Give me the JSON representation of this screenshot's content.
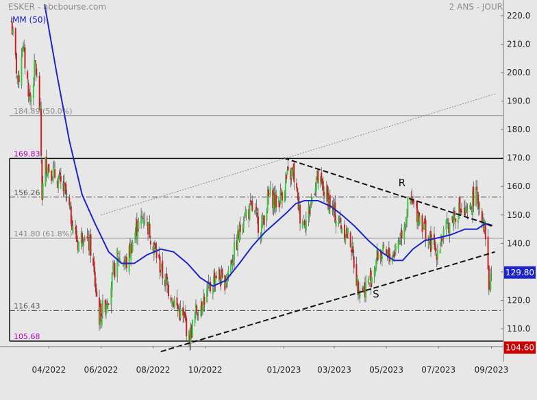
{
  "header": {
    "ticker": "ESKER - abcbourse.com",
    "period": "2 ANS - JOUR",
    "mm_label": "MM (50)"
  },
  "colors": {
    "background": "#e7e7e7",
    "up": "#3cc83c",
    "down": "#cc2222",
    "ma": "#1a24c8",
    "fib": "#8c8c8c",
    "extreme": "#b400b4",
    "last_price_bg": "#1a24c8",
    "low_price_bg": "#c80000"
  },
  "chart_data": {
    "type": "candlestick",
    "ylim": [
      104.0,
      225.5
    ],
    "y_ticks": [
      110,
      120,
      130,
      140,
      150,
      160,
      170,
      180,
      190,
      200,
      210,
      220
    ],
    "y_tick_labels": [
      "110.0",
      "120.0",
      "130.0",
      "140.0",
      "150.0",
      "160.0",
      "170.0",
      "180.0",
      "190.0",
      "200.0",
      "210.0",
      "220.0"
    ],
    "x_range": [
      "2022-02-14",
      "2023-09-15"
    ],
    "x_ticks": [
      "2022-04-01",
      "2022-06-01",
      "2022-08-01",
      "2022-10-01",
      "2023-01-01",
      "2023-03-01",
      "2023-05-01",
      "2023-07-01",
      "2023-09-01"
    ],
    "x_tick_labels": [
      "04/2022",
      "06/2022",
      "08/2022",
      "10/2022",
      "01/2023",
      "03/2023",
      "05/2023",
      "07/2023",
      "09/2023"
    ],
    "price_path": [
      [
        "2022-02-16",
        218
      ],
      [
        "2022-02-24",
        196
      ],
      [
        "2022-03-01",
        210
      ],
      [
        "2022-03-10",
        190
      ],
      [
        "2022-03-16",
        203
      ],
      [
        "2022-03-22",
        185
      ],
      [
        "2022-03-24",
        157
      ],
      [
        "2022-03-28",
        168
      ],
      [
        "2022-04-08",
        164
      ],
      [
        "2022-04-20",
        158
      ],
      [
        "2022-04-28",
        148
      ],
      [
        "2022-05-05",
        140
      ],
      [
        "2022-05-12",
        144
      ],
      [
        "2022-05-20",
        138
      ],
      [
        "2022-05-30",
        114
      ],
      [
        "2022-06-10",
        122
      ],
      [
        "2022-06-20",
        135
      ],
      [
        "2022-07-01",
        133
      ],
      [
        "2022-07-12",
        145
      ],
      [
        "2022-07-22",
        150
      ],
      [
        "2022-08-01",
        140
      ],
      [
        "2022-08-12",
        129
      ],
      [
        "2022-08-28",
        118
      ],
      [
        "2022-09-08",
        112
      ],
      [
        "2022-09-12",
        106
      ],
      [
        "2022-09-20",
        116
      ],
      [
        "2022-10-05",
        123
      ],
      [
        "2022-10-15",
        130
      ],
      [
        "2022-10-22",
        125
      ],
      [
        "2022-11-05",
        138
      ],
      [
        "2022-11-15",
        150
      ],
      [
        "2022-11-25",
        152
      ],
      [
        "2022-12-05",
        145
      ],
      [
        "2022-12-15",
        157
      ],
      [
        "2022-12-25",
        154
      ],
      [
        "2023-01-05",
        163
      ],
      [
        "2023-01-12",
        165
      ],
      [
        "2023-01-20",
        150
      ],
      [
        "2023-01-28",
        148
      ],
      [
        "2023-02-08",
        163
      ],
      [
        "2023-02-18",
        158
      ],
      [
        "2023-02-28",
        151
      ],
      [
        "2023-03-10",
        146
      ],
      [
        "2023-03-20",
        141
      ],
      [
        "2023-03-28",
        126
      ],
      [
        "2023-04-05",
        124
      ],
      [
        "2023-04-12",
        127
      ],
      [
        "2023-04-22",
        137
      ],
      [
        "2023-05-02",
        135
      ],
      [
        "2023-05-10",
        137
      ],
      [
        "2023-05-20",
        145
      ],
      [
        "2023-05-28",
        155
      ],
      [
        "2023-06-10",
        149
      ],
      [
        "2023-06-20",
        141
      ],
      [
        "2023-06-28",
        137
      ],
      [
        "2023-07-05",
        142
      ],
      [
        "2023-07-15",
        148
      ],
      [
        "2023-07-25",
        152
      ],
      [
        "2023-08-05",
        149
      ],
      [
        "2023-08-12",
        158
      ],
      [
        "2023-08-20",
        152
      ],
      [
        "2023-08-26",
        142
      ],
      [
        "2023-08-29",
        124
      ],
      [
        "2023-09-01",
        130
      ]
    ],
    "moving_average": {
      "name": "MM (50)",
      "points": [
        [
          "2022-03-27",
          224
        ],
        [
          "2022-04-10",
          200
        ],
        [
          "2022-04-25",
          176
        ],
        [
          "2022-05-10",
          157
        ],
        [
          "2022-05-25",
          147
        ],
        [
          "2022-06-10",
          137
        ],
        [
          "2022-06-25",
          133
        ],
        [
          "2022-07-10",
          133
        ],
        [
          "2022-07-25",
          136
        ],
        [
          "2022-08-10",
          138
        ],
        [
          "2022-08-25",
          137
        ],
        [
          "2022-09-10",
          133
        ],
        [
          "2022-09-25",
          128
        ],
        [
          "2022-10-10",
          125
        ],
        [
          "2022-10-25",
          127
        ],
        [
          "2022-11-10",
          133
        ],
        [
          "2022-11-25",
          139
        ],
        [
          "2022-12-10",
          144
        ],
        [
          "2022-12-25",
          148
        ],
        [
          "2023-01-05",
          151
        ],
        [
          "2023-01-15",
          154
        ],
        [
          "2023-01-25",
          155
        ],
        [
          "2023-02-10",
          155
        ],
        [
          "2023-02-25",
          153
        ],
        [
          "2023-03-10",
          150
        ],
        [
          "2023-03-25",
          146
        ],
        [
          "2023-04-10",
          141
        ],
        [
          "2023-04-25",
          137
        ],
        [
          "2023-05-10",
          134
        ],
        [
          "2023-05-20",
          134
        ],
        [
          "2023-06-01",
          138
        ],
        [
          "2023-06-15",
          141
        ],
        [
          "2023-07-01",
          142
        ],
        [
          "2023-07-15",
          143
        ],
        [
          "2023-08-01",
          145
        ],
        [
          "2023-08-15",
          145
        ],
        [
          "2023-08-25",
          147
        ],
        [
          "2023-09-01",
          146
        ]
      ]
    },
    "horizontal_levels": [
      {
        "value": 184.89,
        "label": "184.89  (50.0%)",
        "style": "fib"
      },
      {
        "value": 169.83,
        "label": "169.83",
        "style": "extreme"
      },
      {
        "value": 156.26,
        "label": "156.26",
        "style": "dashdot"
      },
      {
        "value": 141.8,
        "label": "141.80  (61.8%)",
        "style": "fib"
      },
      {
        "value": 116.43,
        "label": "116.43",
        "style": "dashdot"
      },
      {
        "value": 105.68,
        "label": "105.68",
        "style": "extreme"
      }
    ],
    "trendlines": [
      {
        "name": "R",
        "from": [
          "2023-01-01",
          170
        ],
        "to": [
          "2023-09-05",
          146
        ],
        "style": "dashed"
      },
      {
        "name": "S",
        "from": [
          "2022-08-10",
          102
        ],
        "to": [
          "2023-09-05",
          137
        ],
        "style": "dashed"
      },
      {
        "name": "",
        "from": [
          "2022-06-01",
          150
        ],
        "to": [
          "2023-09-05",
          192.5
        ],
        "style": "dotted"
      }
    ],
    "annotations": [
      {
        "text": "R",
        "x": "2023-05-15",
        "y": 160
      },
      {
        "text": "S",
        "x": "2023-04-15",
        "y": 121
      }
    ],
    "last_price": {
      "value": 129.8,
      "label": "129.80"
    },
    "low_price": {
      "value": 104.6,
      "label": "104.60"
    }
  }
}
